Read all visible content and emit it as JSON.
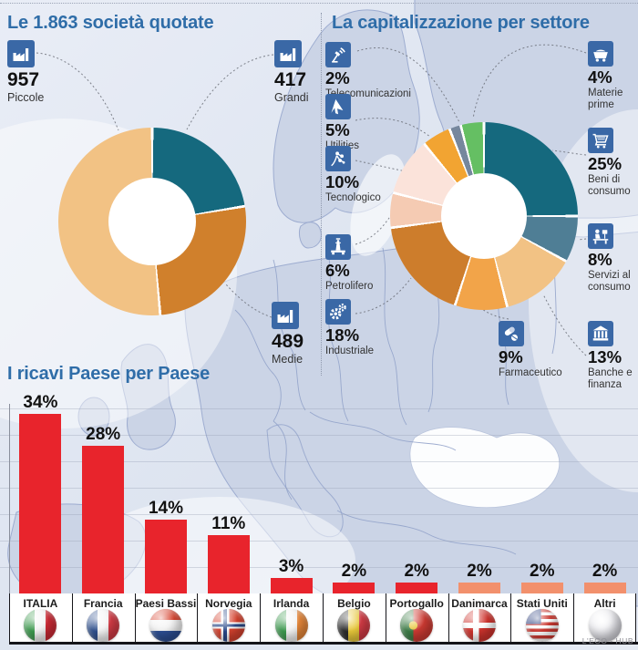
{
  "credit": "L'EGO - HUB",
  "accent_colors": {
    "title_blue": "#2f6da8",
    "icon_blue": "#3a68a6",
    "bar_red": "#e8242c",
    "bar_salmon": "#f2906c"
  },
  "chart_data": [
    {
      "type": "pie",
      "variant": "donut",
      "title": "Le 1.863 società quotate",
      "total": 1863,
      "start": "top",
      "direction": "clockwise",
      "segments": [
        {
          "label": "Grandi",
          "value": 417,
          "color": "#15697e",
          "icon": "factory-icon"
        },
        {
          "label": "Medie",
          "value": 489,
          "color": "#d0802c",
          "icon": "factory-icon"
        },
        {
          "label": "Piccole",
          "value": 957,
          "color": "#f2c284",
          "icon": "factory-icon"
        }
      ]
    },
    {
      "type": "pie",
      "variant": "donut",
      "title": "La capitalizzazione per settore",
      "unit": "%",
      "start": "top",
      "direction": "clockwise",
      "segments": [
        {
          "label": "Beni di consumo",
          "value": 25,
          "color": "#15697e",
          "icon": "shopping-cart-icon"
        },
        {
          "label": "Servizi al consumo",
          "value": 8,
          "color": "#4f7e95",
          "icon": "desk-worker-icon"
        },
        {
          "label": "Banche e finanza",
          "value": 13,
          "color": "#f2c284",
          "icon": "bank-icon"
        },
        {
          "label": "Farmaceutico",
          "value": 9,
          "color": "#f2a449",
          "icon": "pills-icon"
        },
        {
          "label": "Industriale",
          "value": 18,
          "color": "#cd7d2c",
          "icon": "gears-icon"
        },
        {
          "label": "Petrolifero",
          "value": 6,
          "color": "#f5cbb3",
          "icon": "oil-rig-icon"
        },
        {
          "label": "Tecnologico",
          "value": 10,
          "color": "#fbe3da",
          "icon": "circuit-icon"
        },
        {
          "label": "Utilities",
          "value": 5,
          "color": "#f2a432",
          "icon": "cursor-icon"
        },
        {
          "label": "Telecomunicazioni",
          "value": 2,
          "color": "#76879d",
          "icon": "antenna-icon"
        },
        {
          "label": "Materie prime",
          "value": 4,
          "color": "#65bf63",
          "icon": "mine-cart-icon"
        }
      ]
    },
    {
      "type": "bar",
      "title": "I ricavi Paese per Paese",
      "unit": "%",
      "ylim": [
        0,
        35
      ],
      "gridline_step": 5,
      "categories": [
        "ITALIA",
        "Francia",
        "Paesi Bassi",
        "Norvegia",
        "Irlanda",
        "Belgio",
        "Portogallo",
        "Danimarca",
        "Stati Uniti",
        "Altri"
      ],
      "values": [
        34,
        28,
        14,
        11,
        3,
        2,
        2,
        2,
        2,
        2
      ],
      "bar_colors": [
        "#e8242c",
        "#e8242c",
        "#e8242c",
        "#e8242c",
        "#e8242c",
        "#e8242c",
        "#e8242c",
        "#f2906c",
        "#f2906c",
        "#f2906c"
      ],
      "flags": [
        "italy",
        "france",
        "netherlands",
        "norway",
        "ireland",
        "belgium",
        "portugal",
        "denmark",
        "usa",
        "generic"
      ]
    }
  ]
}
